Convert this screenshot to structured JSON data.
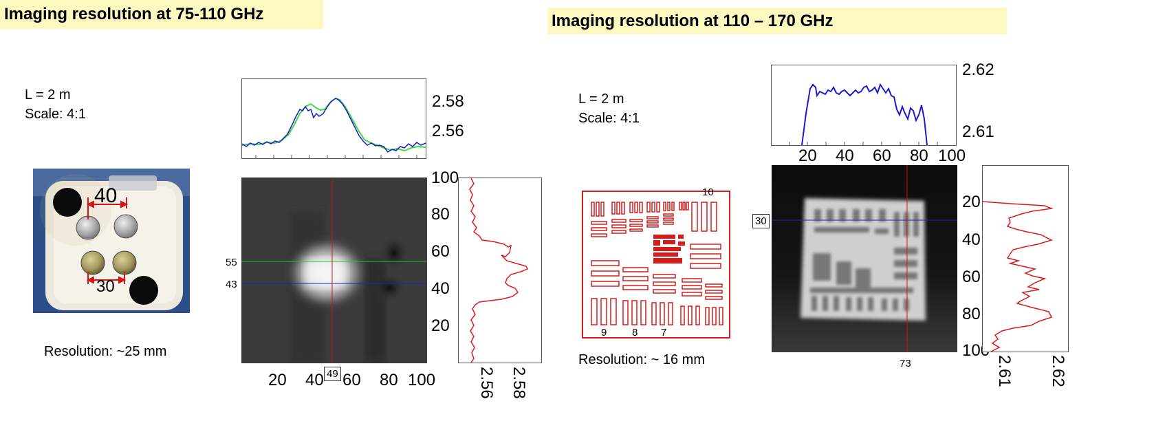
{
  "left": {
    "title": "Imaging resolution at 75-110 GHz",
    "params": {
      "distance": "L = 2 m",
      "scale": "Scale: 4:1"
    },
    "photo": {
      "label_top": "40",
      "label_bottom": "30"
    },
    "resolution": "Resolution: ~25 mm",
    "top_plot": {
      "ticks": [
        "2.58",
        "2.56"
      ]
    },
    "image": {
      "y_markers": [
        "55",
        "43"
      ],
      "x_marker": "49",
      "x_ticks": [
        "20",
        "40",
        "60",
        "80",
        "100"
      ],
      "y_ticks": [
        "100",
        "80",
        "60",
        "40",
        "20"
      ]
    },
    "side_plot": {
      "ticks": [
        "2.56",
        "2.58"
      ]
    }
  },
  "right": {
    "title": "Imaging resolution at 110 – 170 GHz",
    "params": {
      "distance": "L = 2 m",
      "scale": "Scale: 4:1"
    },
    "target": {
      "numbers": [
        "10",
        "9",
        "8",
        "7"
      ]
    },
    "resolution": "Resolution: ~ 16 mm",
    "top_plot": {
      "ticks": [
        "2.62",
        "2.61"
      ],
      "x_ticks": [
        "20",
        "40",
        "60",
        "80",
        "100"
      ]
    },
    "image": {
      "y_marker": "30",
      "x_marker": "73",
      "y_ticks": [
        "20",
        "40",
        "60",
        "80",
        "100"
      ]
    },
    "side_plot": {
      "ticks": [
        "2.61",
        "2.62"
      ]
    }
  },
  "colors": {
    "title_bg": "#fdf8c0",
    "profile_blue": "#1a1ad6",
    "profile_green": "#3ddc3d",
    "profile_red": "#d81c1c",
    "marker_red": "#c81818",
    "marker_green": "#2ec02e",
    "marker_blue": "#2020c0"
  }
}
